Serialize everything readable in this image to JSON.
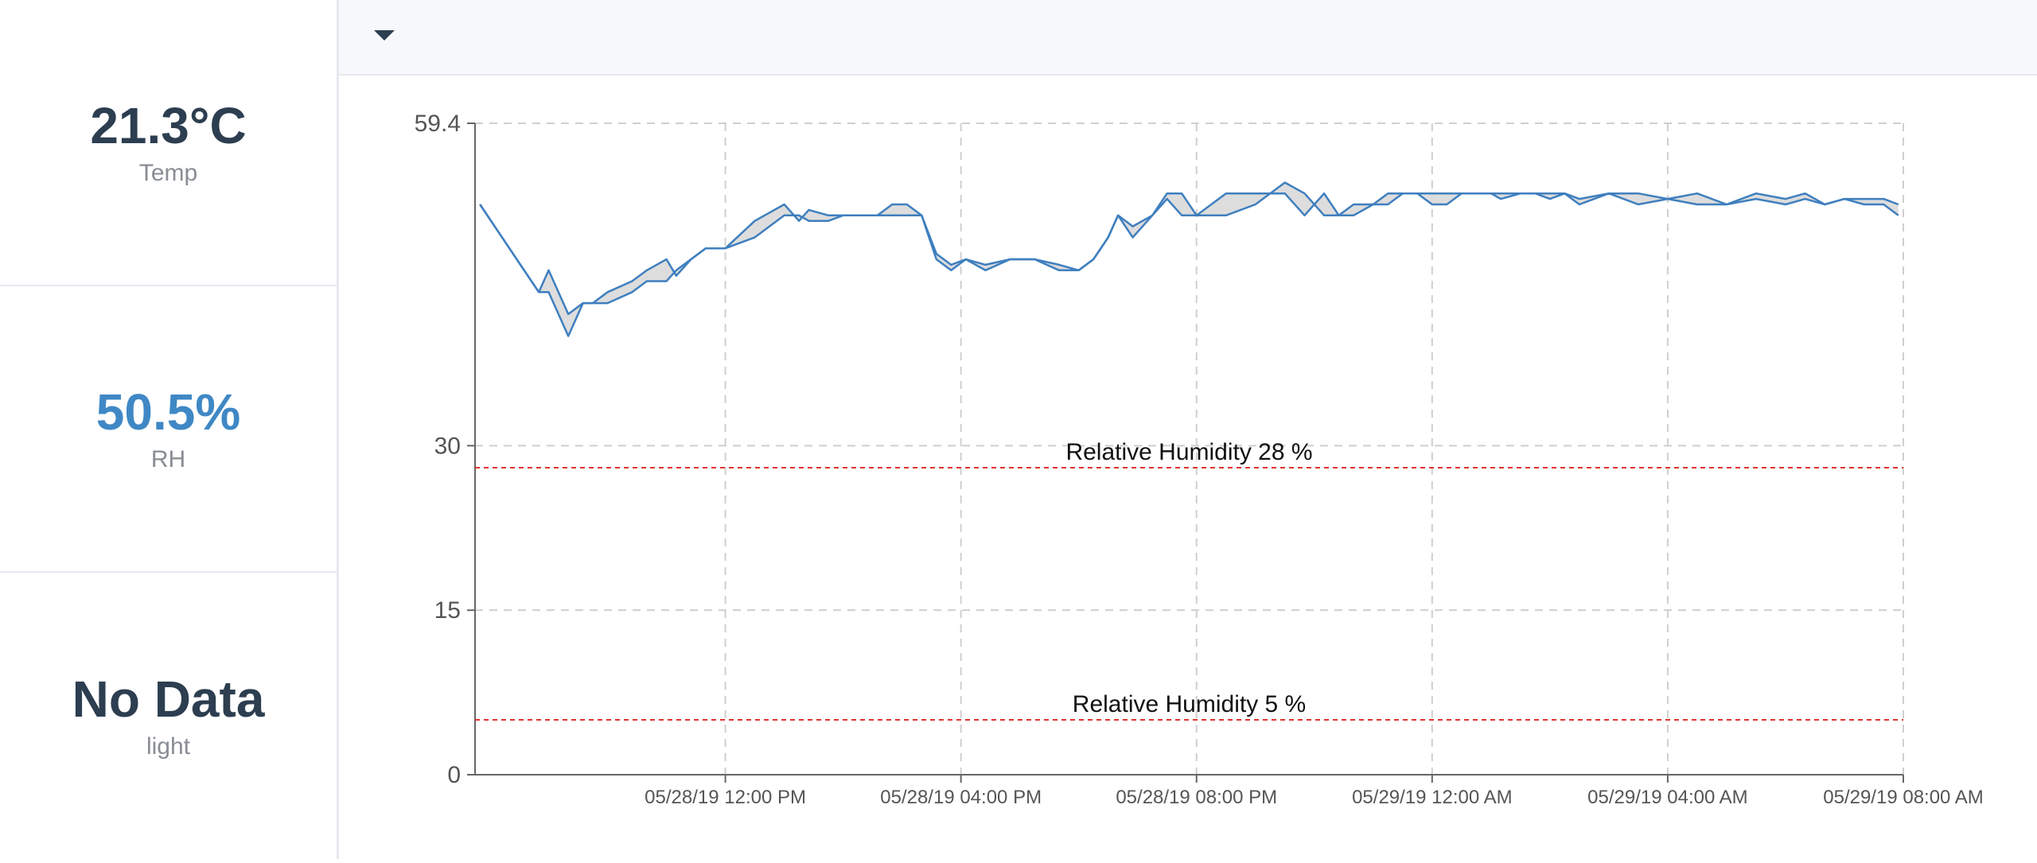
{
  "metrics": [
    {
      "value": "21.3°C",
      "label": "Temp",
      "color": "#2c3e50"
    },
    {
      "value": "50.5%",
      "label": "RH",
      "color": "#3f88c5"
    },
    {
      "value": "No Data",
      "label": "light",
      "color": "#2c3e50"
    }
  ],
  "toolbar": {
    "dropdown_icon": "caret-down-icon"
  },
  "chart_data": {
    "type": "line",
    "title": "",
    "xlabel": "",
    "ylabel": "",
    "ylim": [
      0,
      59.4
    ],
    "xlim": [
      "05/28/19 07:45 AM",
      "05/29/19 08:00 AM"
    ],
    "grid": true,
    "series_color": "#3f7fbf",
    "band_color": "#d9d9d9",
    "x_ticks": [
      {
        "x": "05/28/19 12:00 PM",
        "label": "05/28/19 12:00 PM"
      },
      {
        "x": "05/28/19 04:00 PM",
        "label": "05/28/19 04:00 PM"
      },
      {
        "x": "05/28/19 08:00 PM",
        "label": "05/28/19 08:00 PM"
      },
      {
        "x": "05/29/19 12:00 AM",
        "label": "05/29/19 12:00 AM"
      },
      {
        "x": "05/29/19 04:00 AM",
        "label": "05/29/19 04:00 AM"
      },
      {
        "x": "05/29/19 08:00 AM",
        "label": "05/29/19 08:00 AM"
      }
    ],
    "y_ticks": [
      {
        "value": 0,
        "label": "0"
      },
      {
        "value": 15,
        "label": "15"
      },
      {
        "value": 30,
        "label": "30"
      },
      {
        "value": 59.4,
        "label": "59.4"
      }
    ],
    "thresholds": [
      {
        "value": 28,
        "label": "Relative Humidity 28 %",
        "color": "#e0342f"
      },
      {
        "value": 5,
        "label": "Relative Humidity 5 %",
        "color": "#e0342f"
      }
    ],
    "series": [
      {
        "x": [
          "05/28/19 07:50 AM",
          "05/28/19 08:20 AM",
          "05/28/19 08:35 AM",
          "05/28/19 08:50 AM",
          "05/28/19 09:00 AM",
          "05/28/19 09:20 AM",
          "05/28/19 09:35 AM",
          "05/28/19 09:45 AM",
          "05/28/19 10:00 AM",
          "05/28/19 10:25 AM",
          "05/28/19 10:40 AM",
          "05/28/19 11:00 AM",
          "05/28/19 11:10 AM",
          "05/28/19 11:25 AM",
          "05/28/19 11:40 AM",
          "05/28/19 12:00 PM",
          "05/28/19 12:30 PM",
          "05/28/19 01:00 PM",
          "05/28/19 01:15 PM",
          "05/28/19 01:25 PM",
          "05/28/19 01:45 PM",
          "05/28/19 02:00 PM",
          "05/28/19 02:15 PM",
          "05/28/19 02:35 PM",
          "05/28/19 02:50 PM",
          "05/28/19 03:05 PM",
          "05/28/19 03:20 PM",
          "05/28/19 03:35 PM",
          "05/28/19 03:50 PM",
          "05/28/19 04:05 PM",
          "05/28/19 04:25 PM",
          "05/28/19 04:50 PM",
          "05/28/19 05:15 PM",
          "05/28/19 05:40 PM",
          "05/28/19 06:00 PM",
          "05/28/19 06:15 PM",
          "05/28/19 06:30 PM",
          "05/28/19 06:40 PM",
          "05/28/19 06:55 PM",
          "05/28/19 07:15 PM",
          "05/28/19 07:30 PM",
          "05/28/19 07:45 PM",
          "05/28/19 08:00 PM",
          "05/28/19 08:30 PM",
          "05/28/19 09:00 PM",
          "05/28/19 09:30 PM",
          "05/28/19 09:50 PM",
          "05/28/19 10:10 PM",
          "05/28/19 10:25 PM",
          "05/28/19 10:40 PM",
          "05/28/19 11:00 PM",
          "05/28/19 11:15 PM",
          "05/28/19 11:30 PM",
          "05/28/19 11:45 PM",
          "05/29/19 12:00 AM",
          "05/29/19 12:15 AM",
          "05/29/19 12:30 AM",
          "05/29/19 01:00 AM",
          "05/29/19 01:10 AM",
          "05/29/19 01:30 AM",
          "05/29/19 01:45 AM",
          "05/29/19 02:00 AM",
          "05/29/19 02:15 AM",
          "05/29/19 02:30 AM",
          "05/29/19 03:00 AM",
          "05/29/19 03:30 AM",
          "05/29/19 04:00 AM",
          "05/29/19 04:30 AM",
          "05/29/19 05:00 AM",
          "05/29/19 05:30 AM",
          "05/29/19 06:00 AM",
          "05/29/19 06:20 AM",
          "05/29/19 06:40 AM",
          "05/29/19 07:00 AM",
          "05/29/19 07:20 AM",
          "05/29/19 07:40 AM",
          "05/29/19 07:55 AM"
        ],
        "y": [
          52,
          48,
          46,
          44,
          46,
          42,
          43,
          43,
          44,
          45,
          46,
          47,
          45.5,
          47,
          48,
          48,
          50.5,
          52,
          50.5,
          51.5,
          51,
          51,
          51,
          51,
          52,
          52,
          51,
          47.5,
          46.5,
          47,
          46.5,
          47,
          47,
          46.5,
          46,
          47,
          49,
          51,
          50,
          51,
          53,
          53,
          51,
          53,
          53,
          53,
          51,
          53,
          51,
          51,
          52,
          53,
          53,
          53,
          53,
          53,
          53,
          53,
          53,
          53,
          53,
          53,
          53,
          52.5,
          53,
          53,
          52.5,
          53,
          52,
          53,
          52.5,
          53,
          52,
          52.5,
          52.5,
          52.5,
          52
        ]
      },
      {
        "x": [
          "05/28/19 07:50 AM",
          "05/28/19 08:20 AM",
          "05/28/19 08:35 AM",
          "05/28/19 08:50 AM",
          "05/28/19 09:00 AM",
          "05/28/19 09:20 AM",
          "05/28/19 09:35 AM",
          "05/28/19 09:45 AM",
          "05/28/19 10:00 AM",
          "05/28/19 10:25 AM",
          "05/28/19 10:40 AM",
          "05/28/19 11:00 AM",
          "05/28/19 11:10 AM",
          "05/28/19 11:25 AM",
          "05/28/19 11:40 AM",
          "05/28/19 12:00 PM",
          "05/28/19 12:30 PM",
          "05/28/19 01:00 PM",
          "05/28/19 01:15 PM",
          "05/28/19 01:25 PM",
          "05/28/19 01:45 PM",
          "05/28/19 02:00 PM",
          "05/28/19 02:15 PM",
          "05/28/19 02:35 PM",
          "05/28/19 02:50 PM",
          "05/28/19 03:05 PM",
          "05/28/19 03:20 PM",
          "05/28/19 03:35 PM",
          "05/28/19 03:50 PM",
          "05/28/19 04:05 PM",
          "05/28/19 04:25 PM",
          "05/28/19 04:50 PM",
          "05/28/19 05:15 PM",
          "05/28/19 05:40 PM",
          "05/28/19 06:00 PM",
          "05/28/19 06:15 PM",
          "05/28/19 06:30 PM",
          "05/28/19 06:40 PM",
          "05/28/19 06:55 PM",
          "05/28/19 07:15 PM",
          "05/28/19 07:30 PM",
          "05/28/19 07:45 PM",
          "05/28/19 08:00 PM",
          "05/28/19 08:30 PM",
          "05/28/19 09:00 PM",
          "05/28/19 09:30 PM",
          "05/28/19 09:50 PM",
          "05/28/19 10:10 PM",
          "05/28/19 10:25 PM",
          "05/28/19 10:40 PM",
          "05/28/19 11:00 PM",
          "05/28/19 11:15 PM",
          "05/28/19 11:30 PM",
          "05/28/19 11:45 PM",
          "05/29/19 12:00 AM",
          "05/29/19 12:15 AM",
          "05/29/19 12:30 AM",
          "05/29/19 01:00 AM",
          "05/29/19 01:10 AM",
          "05/29/19 01:30 AM",
          "05/29/19 01:45 AM",
          "05/29/19 02:00 AM",
          "05/29/19 02:15 AM",
          "05/29/19 02:30 AM",
          "05/29/19 03:00 AM",
          "05/29/19 03:30 AM",
          "05/29/19 04:00 AM",
          "05/29/19 04:30 AM",
          "05/29/19 05:00 AM",
          "05/29/19 05:30 AM",
          "05/29/19 06:00 AM",
          "05/29/19 06:20 AM",
          "05/29/19 06:40 AM",
          "05/29/19 07:00 AM",
          "05/29/19 07:20 AM",
          "05/29/19 07:40 AM",
          "05/29/19 07:55 AM"
        ],
        "y": [
          52,
          48,
          46,
          44,
          44,
          40,
          43,
          43,
          43,
          44,
          45,
          45,
          46,
          47,
          48,
          48,
          49,
          51,
          51,
          50.5,
          50.5,
          51,
          51,
          51,
          51,
          51,
          51,
          47,
          46,
          47,
          46,
          47,
          47,
          46,
          46,
          47,
          49,
          51,
          49,
          51,
          52.5,
          51,
          51,
          51,
          52,
          54,
          53,
          51,
          51,
          52,
          52,
          52,
          53,
          53,
          52,
          52,
          53,
          53,
          52.5,
          53,
          53,
          52.5,
          53,
          52,
          53,
          52,
          52.5,
          52,
          52,
          52.5,
          52,
          52.5,
          52,
          52.5,
          52,
          52,
          51
        ]
      }
    ]
  }
}
